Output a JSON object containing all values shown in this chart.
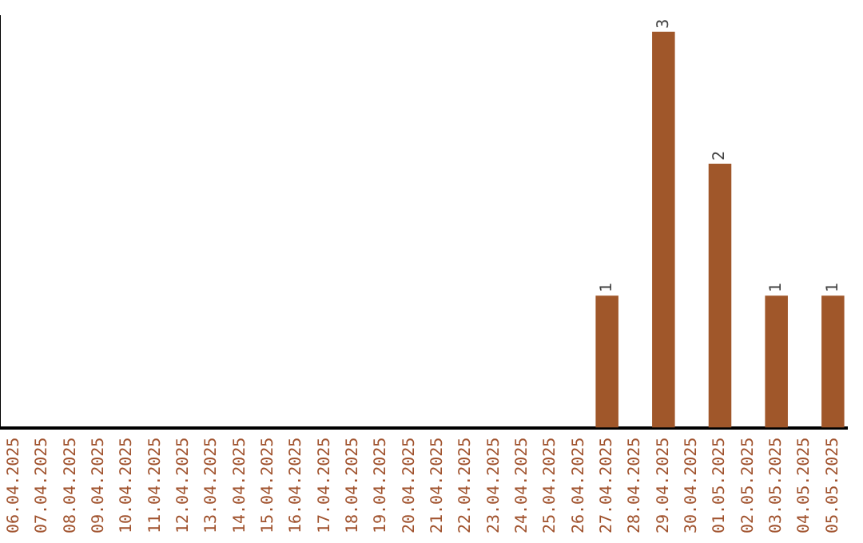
{
  "chart_data": {
    "type": "bar",
    "categories": [
      "06.04.2025",
      "07.04.2025",
      "08.04.2025",
      "09.04.2025",
      "10.04.2025",
      "11.04.2025",
      "12.04.2025",
      "13.04.2025",
      "14.04.2025",
      "15.04.2025",
      "16.04.2025",
      "17.04.2025",
      "18.04.2025",
      "19.04.2025",
      "20.04.2025",
      "21.04.2025",
      "22.04.2025",
      "23.04.2025",
      "24.04.2025",
      "25.04.2025",
      "26.04.2025",
      "27.04.2025",
      "28.04.2025",
      "29.04.2025",
      "30.04.2025",
      "01.05.2025",
      "02.05.2025",
      "03.05.2025",
      "04.05.2025",
      "05.05.2025"
    ],
    "values": [
      null,
      null,
      null,
      null,
      null,
      null,
      null,
      null,
      null,
      null,
      null,
      null,
      null,
      null,
      null,
      null,
      null,
      null,
      null,
      null,
      null,
      1,
      null,
      3,
      null,
      2,
      null,
      1,
      null,
      1
    ],
    "data_labels": true,
    "color": "#a0572a",
    "ylim": [
      0,
      3.12
    ],
    "tick_labels": "x",
    "grid": false,
    "legend": false
  }
}
